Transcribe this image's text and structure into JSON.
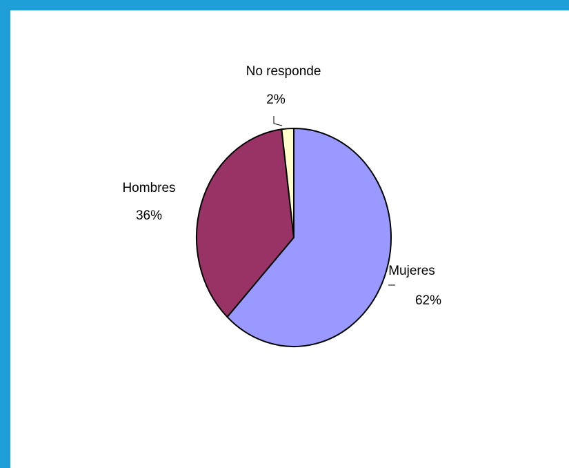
{
  "chart_data": {
    "type": "pie",
    "slices": [
      {
        "name": "Mujeres",
        "value": 62,
        "label": "62%",
        "color": "#9999ff"
      },
      {
        "name": "Hombres",
        "value": 36,
        "label": "36%",
        "color": "#993366"
      },
      {
        "name": "No responde",
        "value": 2,
        "label": "2%",
        "color": "#ffffcc"
      }
    ],
    "legend": "none",
    "data_labels": "category-and-percent"
  }
}
